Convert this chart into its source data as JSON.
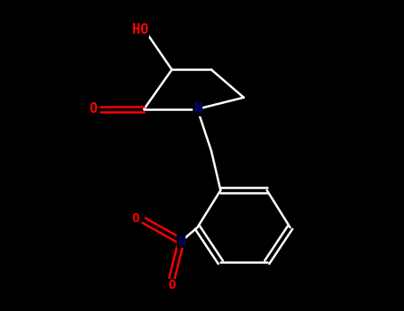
{
  "background_color": "#000000",
  "bond_color": "#ffffff",
  "O_color": "#ff0000",
  "N_color": "#00008b",
  "figsize": [
    4.55,
    3.5
  ],
  "dpi": 100,
  "lw": 1.8,
  "label_fs": 11,
  "atoms": {
    "HO_x": 1.55,
    "HO_y": 6.5,
    "C_alpha_x": 2.1,
    "C_alpha_y": 5.7,
    "C_co_x": 1.5,
    "C_co_y": 4.85,
    "O_co_x": 0.55,
    "O_co_y": 4.85,
    "pyr_N_x": 2.65,
    "pyr_N_y": 4.85,
    "C_beta_x": 2.95,
    "C_beta_y": 5.7,
    "C_gamma_x": 3.65,
    "C_gamma_y": 5.1,
    "ch2_x": 2.95,
    "ch2_y": 3.95,
    "benz_c1_x": 3.15,
    "benz_c1_y": 3.1,
    "benz_c2_x": 2.65,
    "benz_c2_y": 2.3,
    "benz_c3_x": 3.15,
    "benz_c3_y": 1.55,
    "benz_c4_x": 4.15,
    "benz_c4_y": 1.55,
    "benz_c5_x": 4.65,
    "benz_c5_y": 2.3,
    "benz_c6_x": 4.15,
    "benz_c6_y": 3.1,
    "N_no2_x": 2.3,
    "N_no2_y": 2.0,
    "O_no2a_x": 1.5,
    "O_no2a_y": 2.45,
    "O_no2b_x": 2.1,
    "O_no2b_y": 1.2
  },
  "xlim": [
    0.0,
    5.5
  ],
  "ylim": [
    0.5,
    7.2
  ]
}
